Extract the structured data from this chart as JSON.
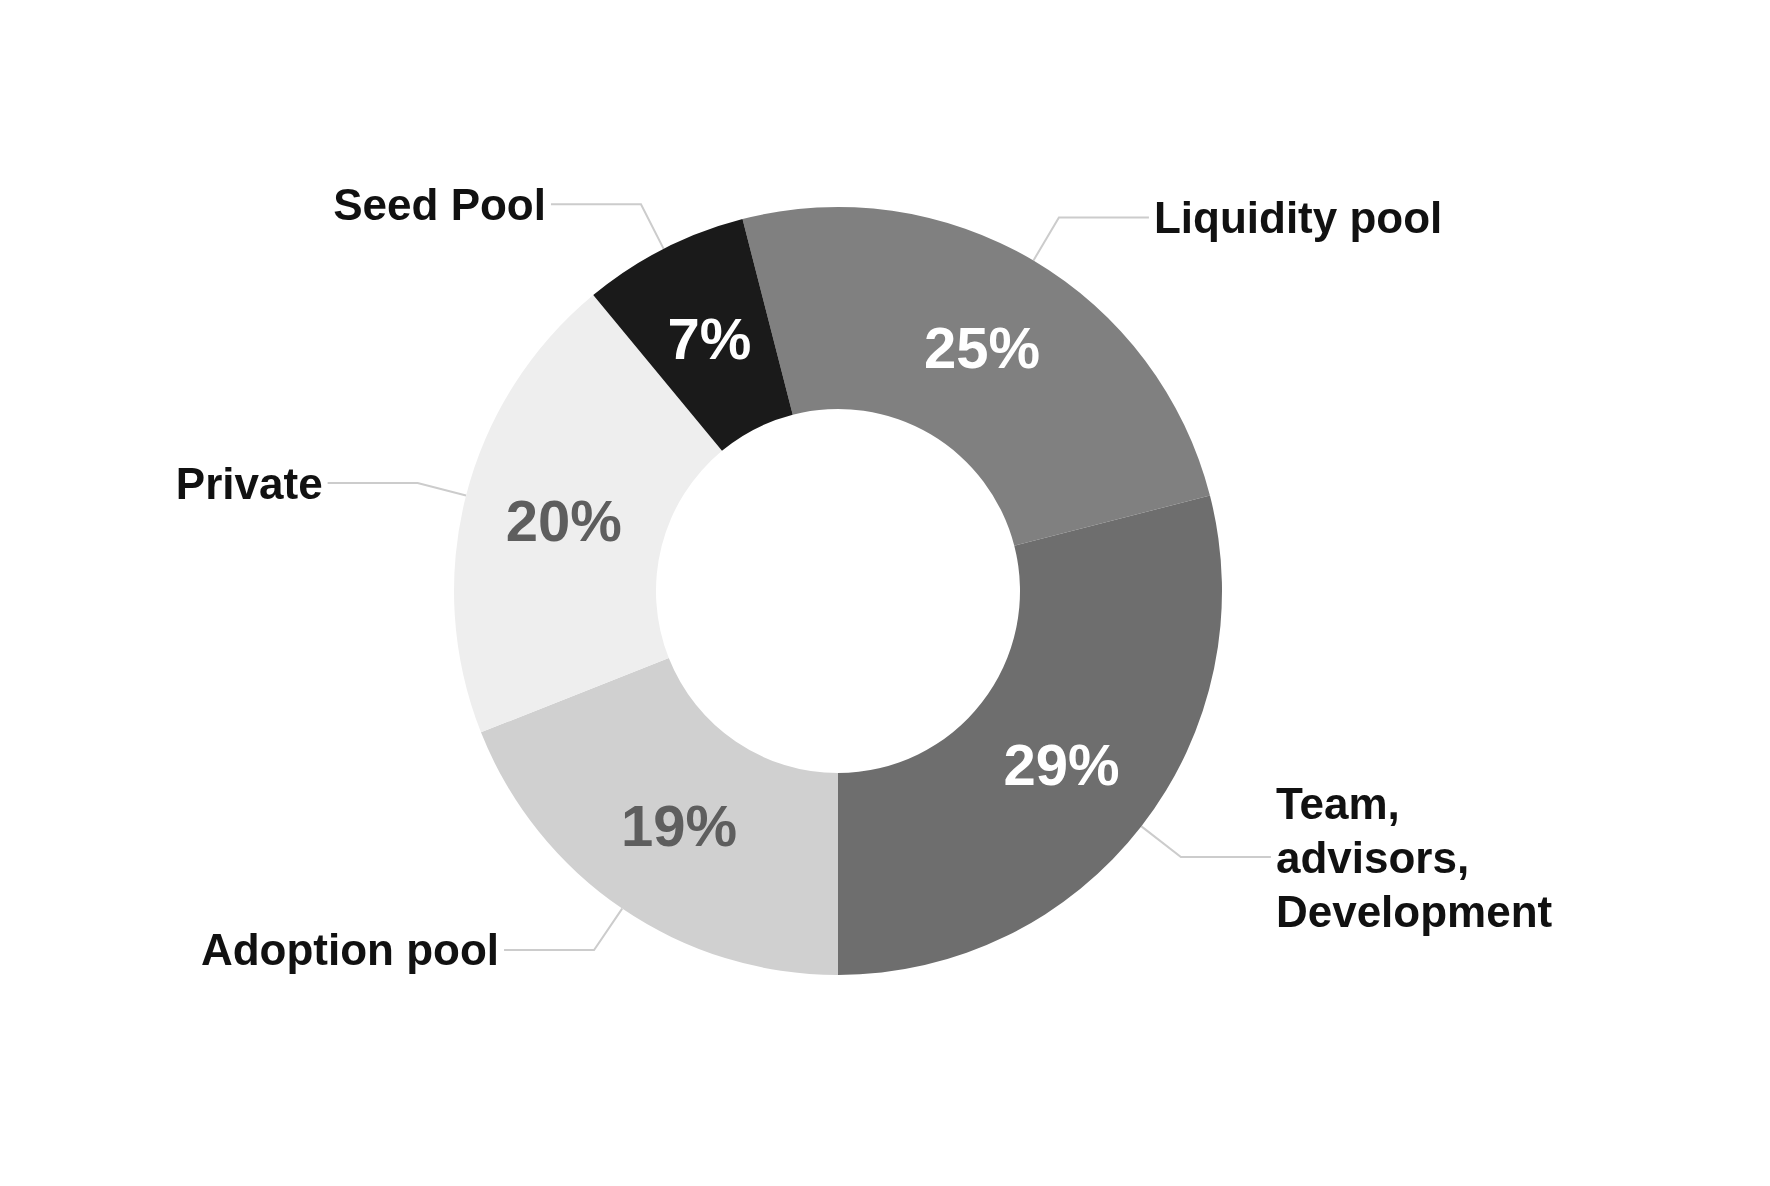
{
  "chart_data": {
    "type": "donut",
    "categories": [
      "Liquidity pool",
      "Team, advisors, Development",
      "Adoption pool",
      "Private",
      "Seed Pool"
    ],
    "values": [
      25,
      29,
      19,
      20,
      7
    ],
    "colors": [
      "#808080",
      "#6e6e6e",
      "#d0d0d0",
      "#eeeeee",
      "#1a1a1a"
    ],
    "value_labels": [
      "25%",
      "29%",
      "19%",
      "20%",
      "7%"
    ]
  }
}
